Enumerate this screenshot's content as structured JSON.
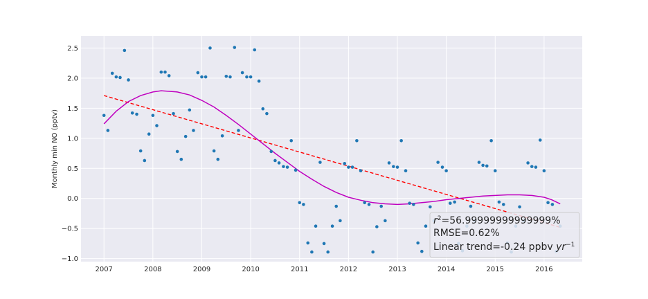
{
  "chart_data": {
    "type": "scatter",
    "ylabel": "Monthly min NO (pptv)",
    "xlabel": "",
    "xlim": [
      2006.53,
      2016.78
    ],
    "ylim": [
      -1.05,
      2.7
    ],
    "x_ticks": [
      2007,
      2008,
      2009,
      2010,
      2011,
      2012,
      2013,
      2014,
      2015,
      2016
    ],
    "y_ticks": [
      -1.0,
      -0.5,
      0.0,
      0.5,
      1.0,
      1.5,
      2.0,
      2.5
    ],
    "y_tick_labels": [
      "−1.0",
      "−0.5",
      "0.0",
      "0.5",
      "1.0",
      "1.5",
      "2.0",
      "2.5"
    ],
    "grid": true,
    "colors": {
      "background": "#eaeaf2",
      "points": "#1f77b4",
      "linear_trend": "#ff0000",
      "poly_fit": "#bf00bf"
    },
    "series": [
      {
        "values": [
          [
            2007.0,
            1.38
          ],
          [
            2007.08,
            1.13
          ],
          [
            2007.17,
            2.08
          ],
          [
            2007.25,
            2.02
          ],
          [
            2007.33,
            2.01
          ],
          [
            2007.42,
            2.46
          ],
          [
            2007.5,
            1.97
          ],
          [
            2007.58,
            1.42
          ],
          [
            2007.67,
            1.4
          ],
          [
            2007.75,
            0.79
          ],
          [
            2007.83,
            0.63
          ],
          [
            2007.92,
            1.07
          ],
          [
            2008.0,
            1.38
          ],
          [
            2008.08,
            1.21
          ],
          [
            2008.17,
            2.1
          ],
          [
            2008.25,
            2.1
          ],
          [
            2008.33,
            2.04
          ],
          [
            2008.42,
            1.41
          ],
          [
            2008.5,
            0.78
          ],
          [
            2008.58,
            0.65
          ],
          [
            2008.67,
            1.03
          ],
          [
            2008.75,
            1.47
          ],
          [
            2008.83,
            1.13
          ],
          [
            2008.92,
            2.09
          ],
          [
            2009.0,
            2.02
          ],
          [
            2009.08,
            2.02
          ],
          [
            2009.17,
            2.5
          ],
          [
            2009.25,
            0.79
          ],
          [
            2009.33,
            0.65
          ],
          [
            2009.42,
            1.04
          ],
          [
            2009.5,
            2.03
          ],
          [
            2009.58,
            2.02
          ],
          [
            2009.67,
            2.51
          ],
          [
            2009.75,
            1.13
          ],
          [
            2009.83,
            2.09
          ],
          [
            2009.92,
            2.02
          ],
          [
            2010.0,
            2.02
          ],
          [
            2010.08,
            2.47
          ],
          [
            2010.17,
            1.95
          ],
          [
            2010.25,
            1.49
          ],
          [
            2010.33,
            1.41
          ],
          [
            2010.42,
            0.78
          ],
          [
            2010.5,
            0.63
          ],
          [
            2010.58,
            0.59
          ],
          [
            2010.67,
            0.53
          ],
          [
            2010.75,
            0.52
          ],
          [
            2010.83,
            0.96
          ],
          [
            2010.92,
            0.47
          ],
          [
            2011.0,
            -0.07
          ],
          [
            2011.08,
            -0.1
          ],
          [
            2011.17,
            -0.74
          ],
          [
            2011.25,
            -0.89
          ],
          [
            2011.33,
            -0.46
          ],
          [
            2011.42,
            0.6
          ],
          [
            2011.5,
            -0.75
          ],
          [
            2011.58,
            -0.89
          ],
          [
            2011.67,
            -0.46
          ],
          [
            2011.75,
            -0.13
          ],
          [
            2011.83,
            -0.37
          ],
          [
            2011.92,
            0.58
          ],
          [
            2012.0,
            0.52
          ],
          [
            2012.08,
            0.52
          ],
          [
            2012.17,
            0.96
          ],
          [
            2012.25,
            0.46
          ],
          [
            2012.33,
            -0.07
          ],
          [
            2012.42,
            -0.1
          ],
          [
            2012.5,
            -0.89
          ],
          [
            2012.58,
            -0.47
          ],
          [
            2012.67,
            -0.13
          ],
          [
            2012.75,
            -0.37
          ],
          [
            2012.83,
            0.59
          ],
          [
            2012.92,
            0.53
          ],
          [
            2013.0,
            0.52
          ],
          [
            2013.08,
            0.96
          ],
          [
            2013.17,
            0.46
          ],
          [
            2013.25,
            -0.08
          ],
          [
            2013.33,
            -0.1
          ],
          [
            2013.42,
            -0.74
          ],
          [
            2013.5,
            -0.88
          ],
          [
            2013.58,
            -0.46
          ],
          [
            2013.67,
            -0.14
          ],
          [
            2013.75,
            -0.37
          ],
          [
            2013.83,
            0.6
          ],
          [
            2013.92,
            0.52
          ],
          [
            2014.0,
            0.46
          ],
          [
            2014.08,
            -0.08
          ],
          [
            2014.17,
            -0.06
          ],
          [
            2014.25,
            -0.75
          ],
          [
            2014.33,
            -0.87
          ],
          [
            2014.42,
            -0.46
          ],
          [
            2014.5,
            -0.13
          ],
          [
            2014.58,
            -0.37
          ],
          [
            2014.67,
            0.6
          ],
          [
            2014.75,
            0.55
          ],
          [
            2014.83,
            0.54
          ],
          [
            2014.92,
            0.96
          ],
          [
            2015.0,
            0.46
          ],
          [
            2015.08,
            -0.06
          ],
          [
            2015.17,
            -0.1
          ],
          [
            2015.25,
            -0.74
          ],
          [
            2015.33,
            -0.89
          ],
          [
            2015.42,
            -0.46
          ],
          [
            2015.5,
            -0.14
          ],
          [
            2015.58,
            -0.37
          ],
          [
            2015.67,
            0.59
          ],
          [
            2015.75,
            0.53
          ],
          [
            2015.83,
            0.52
          ],
          [
            2015.92,
            0.97
          ],
          [
            2016.0,
            0.46
          ],
          [
            2016.08,
            -0.07
          ],
          [
            2016.17,
            -0.1
          ],
          [
            2016.25,
            -0.88
          ],
          [
            2016.33,
            -0.46
          ]
        ]
      },
      {
        "style": "dashed",
        "color": "#ff0000",
        "values": [
          [
            2007.0,
            1.71
          ],
          [
            2016.33,
            -0.48
          ]
        ]
      },
      {
        "style": "solid",
        "color": "#bf00bf",
        "values": [
          [
            2007.0,
            1.24
          ],
          [
            2007.25,
            1.45
          ],
          [
            2007.5,
            1.61
          ],
          [
            2007.75,
            1.71
          ],
          [
            2008.0,
            1.77
          ],
          [
            2008.17,
            1.79
          ],
          [
            2008.5,
            1.77
          ],
          [
            2008.75,
            1.72
          ],
          [
            2009.0,
            1.63
          ],
          [
            2009.25,
            1.52
          ],
          [
            2009.5,
            1.38
          ],
          [
            2009.75,
            1.23
          ],
          [
            2010.0,
            1.07
          ],
          [
            2010.25,
            0.91
          ],
          [
            2010.5,
            0.75
          ],
          [
            2010.75,
            0.6
          ],
          [
            2011.0,
            0.45
          ],
          [
            2011.25,
            0.32
          ],
          [
            2011.5,
            0.2
          ],
          [
            2011.75,
            0.1
          ],
          [
            2012.0,
            0.02
          ],
          [
            2012.25,
            -0.03
          ],
          [
            2012.5,
            -0.07
          ],
          [
            2012.75,
            -0.09
          ],
          [
            2013.0,
            -0.1
          ],
          [
            2013.25,
            -0.09
          ],
          [
            2013.5,
            -0.07
          ],
          [
            2013.75,
            -0.05
          ],
          [
            2014.0,
            -0.02
          ],
          [
            2014.25,
            0.0
          ],
          [
            2014.5,
            0.02
          ],
          [
            2014.75,
            0.04
          ],
          [
            2015.0,
            0.05
          ],
          [
            2015.25,
            0.06
          ],
          [
            2015.5,
            0.06
          ],
          [
            2015.75,
            0.05
          ],
          [
            2016.0,
            0.02
          ],
          [
            2016.15,
            -0.02
          ],
          [
            2016.33,
            -0.09
          ]
        ]
      }
    ],
    "annotations": [
      {
        "text_pre": "r",
        "text_sup": "2",
        "text_post": "=56.99999999999999%"
      },
      {
        "text": "RMSE=0.62%"
      },
      {
        "text_pre": "Linear trend=-0.24 ppbv ",
        "text_italic": "yr",
        "text_sup": "−1"
      }
    ],
    "annotation_box_position": "bottom-right"
  }
}
